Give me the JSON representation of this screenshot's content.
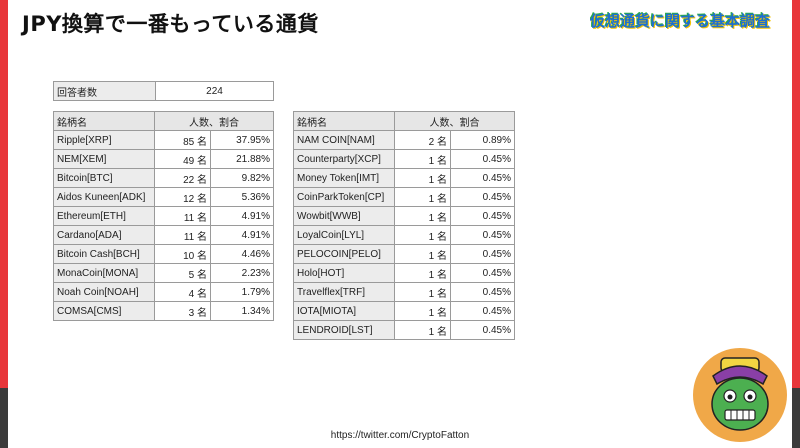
{
  "page": {
    "title": "JPY換算で一番もっている通貨",
    "logo_text": "仮想通貨に関する基本調査",
    "footer_url": "https://twitter.com/CryptoFatton"
  },
  "respondents": {
    "label": "回答者数",
    "value": "224"
  },
  "headers": {
    "name": "銘柄名",
    "count_pct": "人数、割合"
  },
  "left_rows": [
    {
      "name": "Ripple[XRP]",
      "count": "85 名",
      "pct": "37.95%"
    },
    {
      "name": "NEM[XEM]",
      "count": "49 名",
      "pct": "21.88%"
    },
    {
      "name": "Bitcoin[BTC]",
      "count": "22 名",
      "pct": "9.82%"
    },
    {
      "name": "Aidos Kuneen[ADK]",
      "count": "12 名",
      "pct": "5.36%"
    },
    {
      "name": "Ethereum[ETH]",
      "count": "11 名",
      "pct": "4.91%"
    },
    {
      "name": "Cardano[ADA]",
      "count": "11 名",
      "pct": "4.91%"
    },
    {
      "name": "Bitcoin Cash[BCH]",
      "count": "10 名",
      "pct": "4.46%"
    },
    {
      "name": "MonaCoin[MONA]",
      "count": "5 名",
      "pct": "2.23%"
    },
    {
      "name": "Noah Coin[NOAH]",
      "count": "4 名",
      "pct": "1.79%"
    },
    {
      "name": "COMSA[CMS]",
      "count": "3 名",
      "pct": "1.34%"
    }
  ],
  "right_rows": [
    {
      "name": "NAM COIN[NAM]",
      "count": "2 名",
      "pct": "0.89%"
    },
    {
      "name": "Counterparty[XCP]",
      "count": "1 名",
      "pct": "0.45%"
    },
    {
      "name": "Money Token[IMT]",
      "count": "1 名",
      "pct": "0.45%"
    },
    {
      "name": "CoinParkToken[CP]",
      "count": "1 名",
      "pct": "0.45%"
    },
    {
      "name": "Wowbit[WWB]",
      "count": "1 名",
      "pct": "0.45%"
    },
    {
      "name": "LoyalCoin[LYL]",
      "count": "1 名",
      "pct": "0.45%"
    },
    {
      "name": "PELOCOIN[PELO]",
      "count": "1 名",
      "pct": "0.45%"
    },
    {
      "name": "Holo[HOT]",
      "count": "1 名",
      "pct": "0.45%"
    },
    {
      "name": "Travelflex[TRF]",
      "count": "1 名",
      "pct": "0.45%"
    },
    {
      "name": "IOTA[MIOTA]",
      "count": "1 名",
      "pct": "0.45%"
    },
    {
      "name": "LENDROID[LST]",
      "count": "1 名",
      "pct": "0.45%"
    }
  ],
  "colors": {
    "accent_red": "#e8363a",
    "dark_gray": "#3b3b3b",
    "header_gray": "#e6e6e6",
    "mascot_orange": "#f0a848",
    "mascot_green": "#4caf50"
  },
  "icons": {
    "mascot": "mascot-icon",
    "logo": "logo-icon"
  }
}
